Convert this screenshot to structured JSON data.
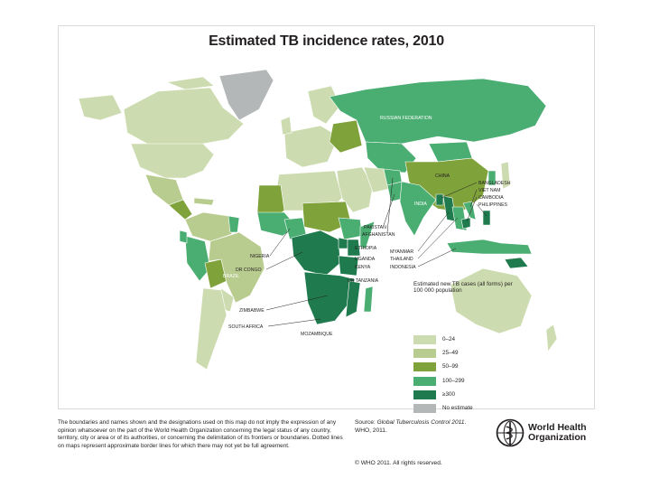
{
  "title": "Estimated TB incidence rates, 2010",
  "colors": {
    "c0": "#cddcb0",
    "c1": "#b9cc8f",
    "c2": "#7fa23b",
    "c3": "#4aae72",
    "c4": "#1f7a4d",
    "none": "#b4b7b8",
    "ocean": "#ffffff"
  },
  "country_labels": {
    "russia": "RUSSIAN FEDERATION",
    "china": "CHINA",
    "india": "INDIA",
    "brazil": "BRAZIL",
    "bangladesh": "BANGLADESH",
    "vietnam": "VIET NAM",
    "cambodia": "CAMBODIA",
    "philippines": "PHILIPPINES",
    "pakistan": "PAKISTAN",
    "afghanistan": "AFGHANISTAN",
    "ethiopia": "ETHIOPIA",
    "uganda": "UGANDA",
    "kenya": "KENYA",
    "tanzania": "UR TANZANIA",
    "myanmar": "MYANMAR",
    "thailand": "THAILAND",
    "indonesia": "INDONESIA",
    "nigeria": "NIGERIA",
    "drcongo": "DR CONGO",
    "zimbabwe": "ZIMBABWE",
    "southafrica": "SOUTH AFRICA",
    "mozambique": "MOZAMBIQUE"
  },
  "legend": {
    "title": "Estimated new TB cases (all forms) per 100 000 population",
    "items": [
      {
        "label": "0–24",
        "color_key": "c0"
      },
      {
        "label": "25–49",
        "color_key": "c1"
      },
      {
        "label": "50–99",
        "color_key": "c2"
      },
      {
        "label": "100–299",
        "color_key": "c3"
      },
      {
        "label": "≥300",
        "color_key": "c4"
      },
      {
        "label": "No estimate",
        "color_key": "none"
      }
    ]
  },
  "disclaimer": "The boundaries and names shown and the designations used on this map do not imply the expression of any opinion whatsoever on the part of the World Health Organization concerning the legal status of any country, territory, city or area or of its authorities, or concerning the delimitation of its frontiers or boundaries. Dotted lines on maps represent approximate border lines for which there may not yet be full agreement.",
  "source": {
    "label": "Source:",
    "title": "Global Tuberculosis Control 2011",
    "rest": ". WHO, 2011."
  },
  "copyright": "© WHO 2011. All rights reserved.",
  "organization": {
    "line1": "World Health",
    "line2": "Organization"
  }
}
